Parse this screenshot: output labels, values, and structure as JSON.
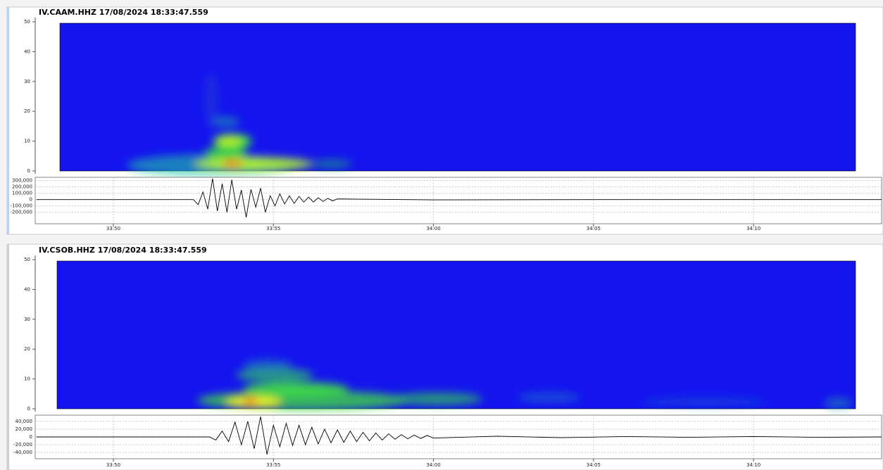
{
  "chart_data": [
    {
      "type": "spectrogram",
      "title": "IV.CAAM.HHZ 17/08/2024 18:33:47.559",
      "xlim": [
        2027.559,
        2054
      ],
      "ylim": [
        0,
        50
      ],
      "yticks": [
        0,
        10,
        20,
        30,
        40,
        50
      ],
      "color": "#1414ee"
    },
    {
      "type": "line",
      "color": "#000000",
      "grid": true,
      "x": [
        2027.6,
        2030,
        2032.4,
        2032.5,
        2032.65,
        2032.8,
        2032.95,
        2033.1,
        2033.25,
        2033.4,
        2033.55,
        2033.7,
        2033.85,
        2034.0,
        2034.15,
        2034.3,
        2034.45,
        2034.6,
        2034.75,
        2034.9,
        2035.05,
        2035.2,
        2035.35,
        2035.5,
        2035.65,
        2035.8,
        2035.95,
        2036.1,
        2036.25,
        2036.4,
        2036.55,
        2036.7,
        2036.85,
        2037.0,
        2038,
        2040,
        2045,
        2050,
        2054
      ],
      "values": [
        0,
        0,
        0,
        0,
        -80000,
        120000,
        -150000,
        330000,
        -180000,
        250000,
        -200000,
        310000,
        -150000,
        150000,
        -280000,
        160000,
        -120000,
        180000,
        -200000,
        60000,
        -100000,
        90000,
        -70000,
        60000,
        -60000,
        50000,
        -40000,
        40000,
        -40000,
        30000,
        -30000,
        20000,
        -20000,
        10000,
        5000,
        -5000,
        0,
        0,
        0
      ],
      "xlim": [
        2027.559,
        2054
      ],
      "xticks": [
        {
          "value": 2030,
          "label": "33:50"
        },
        {
          "value": 2035,
          "label": "33:55"
        },
        {
          "value": 2040,
          "label": "34:00"
        },
        {
          "value": 2045,
          "label": "34:05"
        },
        {
          "value": 2050,
          "label": "34:10"
        }
      ],
      "ylim": [
        -380000,
        350000
      ],
      "yticks": [
        {
          "value": 300000,
          "label": "300,000"
        },
        {
          "value": 200000,
          "label": "200,000"
        },
        {
          "value": 100000,
          "label": "100,000"
        },
        0,
        {
          "value": -100000,
          "label": "-100,000"
        },
        {
          "value": -200000,
          "label": "-200,000"
        }
      ]
    },
    {
      "type": "spectrogram",
      "title": "IV.CSOB.HHZ 17/08/2024 18:33:47.559",
      "xlim": [
        2027.559,
        2054
      ],
      "ylim": [
        0,
        50
      ],
      "yticks": [
        0,
        10,
        20,
        30,
        40,
        50
      ],
      "color": "#1414ee"
    },
    {
      "type": "line",
      "color": "#000000",
      "grid": true,
      "x": [
        2027.6,
        2030,
        2032.9,
        2033.0,
        2033.2,
        2033.4,
        2033.6,
        2033.8,
        2034.0,
        2034.2,
        2034.4,
        2034.6,
        2034.8,
        2035.0,
        2035.2,
        2035.4,
        2035.6,
        2035.8,
        2036.0,
        2036.2,
        2036.4,
        2036.6,
        2036.8,
        2037.0,
        2037.2,
        2037.4,
        2037.6,
        2037.8,
        2038.0,
        2038.2,
        2038.4,
        2038.6,
        2038.8,
        2039.0,
        2039.2,
        2039.4,
        2039.6,
        2039.8,
        2040.0,
        2042,
        2044,
        2046,
        2048,
        2050,
        2052,
        2054
      ],
      "values": [
        0,
        0,
        0,
        0,
        -8000,
        15000,
        -12000,
        38000,
        -20000,
        40000,
        -30000,
        52000,
        -45000,
        30000,
        -25000,
        35000,
        -22000,
        30000,
        -20000,
        25000,
        -18000,
        20000,
        -15000,
        18000,
        -14000,
        15000,
        -12000,
        12000,
        -10000,
        10000,
        -8000,
        8000,
        -6000,
        6000,
        -5000,
        5000,
        -4000,
        4000,
        -3000,
        2000,
        -2000,
        1000,
        -1000,
        1000,
        -1000,
        0
      ],
      "xlim": [
        2027.559,
        2054
      ],
      "xticks": [
        {
          "value": 2030,
          "label": "33:50"
        },
        {
          "value": 2035,
          "label": "33:55"
        },
        {
          "value": 2040,
          "label": "34:00"
        },
        {
          "value": 2045,
          "label": "34:05"
        },
        {
          "value": 2050,
          "label": "34:10"
        }
      ],
      "ylim": [
        -56000,
        56000
      ],
      "yticks": [
        {
          "value": 40000,
          "label": "40,000"
        },
        {
          "value": 20000,
          "label": "20,000"
        },
        0,
        {
          "value": -20000,
          "label": "-20,000"
        },
        {
          "value": -40000,
          "label": "-40,000"
        }
      ]
    }
  ]
}
